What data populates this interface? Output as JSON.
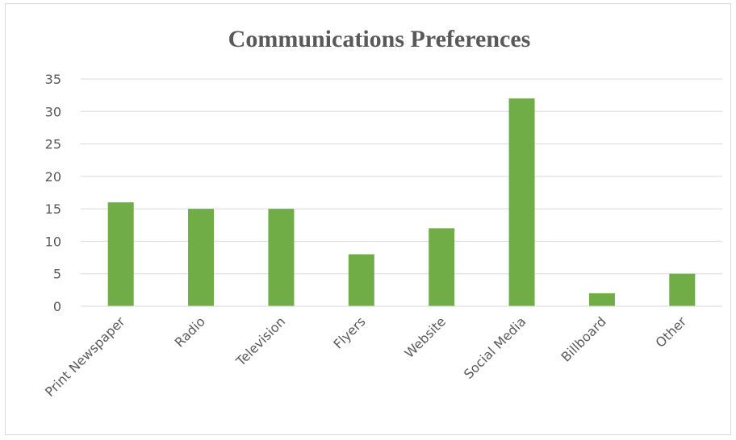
{
  "chart_data": {
    "type": "bar",
    "title": "Communications Preferences",
    "xlabel": "",
    "ylabel": "",
    "categories": [
      "Print Newspaper",
      "Radio",
      "Television",
      "Flyers",
      "Website",
      "Social Media",
      "Billboard",
      "Other"
    ],
    "values": [
      16,
      15,
      15,
      8,
      12,
      32,
      2,
      5
    ],
    "ylim": [
      0,
      35
    ],
    "yticks": [
      0,
      5,
      10,
      15,
      20,
      25,
      30,
      35
    ],
    "grid": true,
    "legend": "none",
    "bar_color": "#70ad47",
    "grid_color": "#d9d9d9",
    "text_color": "#595959"
  }
}
